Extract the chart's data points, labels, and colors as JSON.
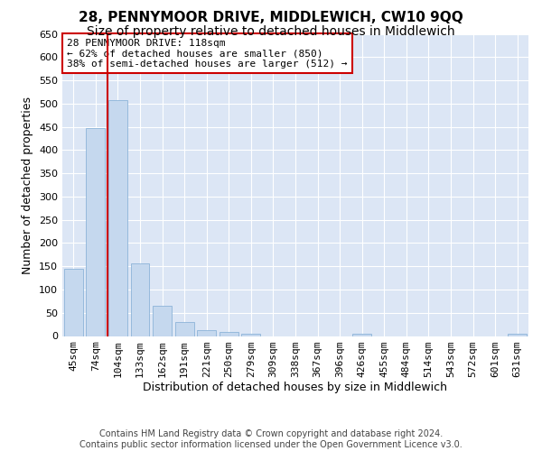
{
  "title": "28, PENNYMOOR DRIVE, MIDDLEWICH, CW10 9QQ",
  "subtitle": "Size of property relative to detached houses in Middlewich",
  "xlabel": "Distribution of detached houses by size in Middlewich",
  "ylabel": "Number of detached properties",
  "categories": [
    "45sqm",
    "74sqm",
    "104sqm",
    "133sqm",
    "162sqm",
    "191sqm",
    "221sqm",
    "250sqm",
    "279sqm",
    "309sqm",
    "338sqm",
    "367sqm",
    "396sqm",
    "426sqm",
    "455sqm",
    "484sqm",
    "514sqm",
    "543sqm",
    "572sqm",
    "601sqm",
    "631sqm"
  ],
  "values": [
    145,
    448,
    507,
    157,
    65,
    30,
    12,
    8,
    5,
    0,
    0,
    0,
    0,
    5,
    0,
    0,
    0,
    0,
    0,
    0,
    5
  ],
  "bar_color": "#c5d8ee",
  "bar_edge_color": "#8db4d8",
  "vline_color": "#cc0000",
  "vline_x": 1.55,
  "annotation_text": "28 PENNYMOOR DRIVE: 118sqm\n← 62% of detached houses are smaller (850)\n38% of semi-detached houses are larger (512) →",
  "annotation_box_color": "#ffffff",
  "annotation_box_edge": "#cc0000",
  "fig_bg_color": "#ffffff",
  "plot_bg_color": "#dce6f5",
  "grid_color": "#ffffff",
  "footer": "Contains HM Land Registry data © Crown copyright and database right 2024.\nContains public sector information licensed under the Open Government Licence v3.0.",
  "ylim": [
    0,
    650
  ],
  "yticks": [
    0,
    50,
    100,
    150,
    200,
    250,
    300,
    350,
    400,
    450,
    500,
    550,
    600,
    650
  ],
  "title_fontsize": 11,
  "subtitle_fontsize": 10,
  "ylabel_fontsize": 9,
  "xlabel_fontsize": 9,
  "tick_fontsize": 8,
  "annot_fontsize": 8,
  "footer_fontsize": 7
}
